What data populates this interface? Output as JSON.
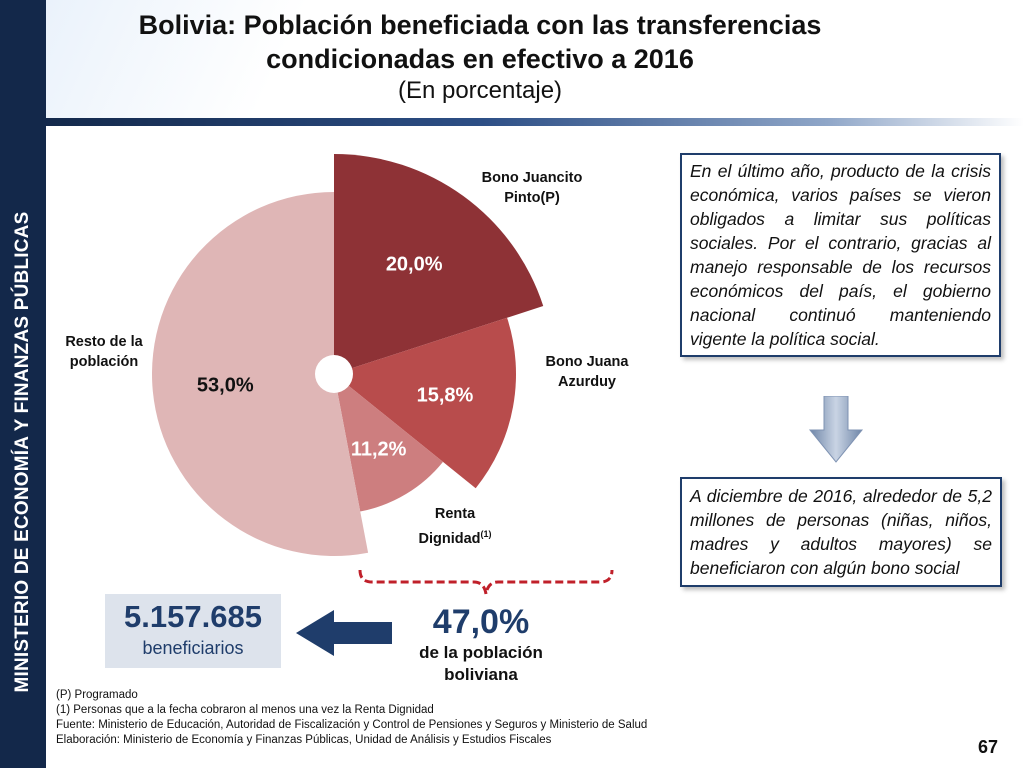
{
  "sidebar": {
    "label": "MINISTERIO DE ECONOMÍA Y FINANZAS PÚBLICAS"
  },
  "header": {
    "title_line1": "Bolivia: Población beneficiada con las transferencias",
    "title_line2": "condicionadas en efectivo a 2016",
    "subtitle": "(En porcentaje)"
  },
  "chart_data": {
    "type": "pie",
    "title": "Bolivia: Población beneficiada con las transferencias condicionadas en efectivo a 2016",
    "subtitle": "(En porcentaje)",
    "exploded": true,
    "slices": [
      {
        "name": "Bono Juancito Pinto(P)",
        "value": 20.0,
        "value_label": "20,0%",
        "color": "#8e3236"
      },
      {
        "name": "Bono Juana Azurduy",
        "value": 15.8,
        "value_label": "15,8%",
        "color": "#b84c4c"
      },
      {
        "name": "Renta Dignidad(1)",
        "value": 11.2,
        "value_label": "11,2%",
        "color": "#cd7e7f"
      },
      {
        "name": "Resto de la población",
        "value": 53.0,
        "value_label": "53,0%",
        "color": "#dfb6b6"
      }
    ]
  },
  "labels": {
    "juancito_line1": "Bono Juancito",
    "juancito_line2": "Pinto(P)",
    "azurduy_line1": "Bono Juana",
    "azurduy_line2": "Azurduy",
    "renta_line1": "Renta",
    "renta_line2": "Dignidad",
    "renta_sup": "(1)",
    "resto_line1": "Resto de la",
    "resto_line2": "población"
  },
  "info_box_1": "En el último año, producto de la crisis económica, varios países se vieron obligados a limitar sus políticas sociales. Por el contrario, gracias al manejo responsable de los recursos económicos del país, el gobierno nacional continuó manteniendo vigente la política social.",
  "info_box_2": "A diciembre de 2016, alrededor de 5,2 millones de personas (niñas, niños, madres y adultos mayores) se beneficiaron con algún bono social",
  "summary": {
    "beneficiaries_number": "5.157.685",
    "beneficiaries_label": "beneficiarios",
    "percent": "47,0%",
    "percent_label_line1": "de la población",
    "percent_label_line2": "boliviana"
  },
  "notes": {
    "line1": "(P) Programado",
    "line2": "(1) Personas que a la fecha cobraron al menos una vez la Renta Dignidad",
    "line3": "Fuente: Ministerio de Educación, Autoridad de Fiscalización y Control de Pensiones y Seguros y Ministerio de Salud",
    "line4": "Elaboración: Ministerio de Economía y Finanzas Públicas, Unidad de Análisis y Estudios Fiscales"
  },
  "page_number": "67",
  "colors": {
    "navy": "#13284a",
    "accent_blue": "#1f3d6b",
    "bracket_red": "#c0202a"
  }
}
